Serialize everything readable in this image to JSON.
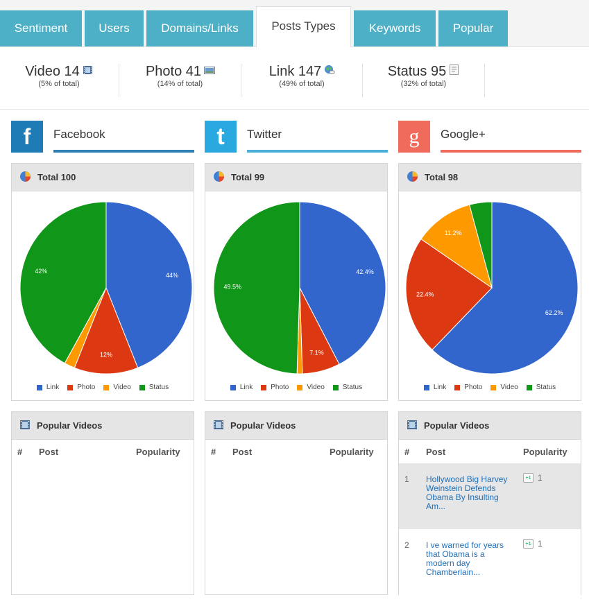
{
  "tabs": [
    {
      "label": "Sentiment",
      "active": false
    },
    {
      "label": "Users",
      "active": false
    },
    {
      "label": "Domains/Links",
      "active": false
    },
    {
      "label": "Posts Types",
      "active": true
    },
    {
      "label": "Keywords",
      "active": false
    },
    {
      "label": "Popular",
      "active": false
    }
  ],
  "summary": [
    {
      "label": "Video 14",
      "sub": "(5% of total)",
      "icon": "film-icon"
    },
    {
      "label": "Photo 41",
      "sub": "(14% of total)",
      "icon": "photo-icon"
    },
    {
      "label": "Link 147",
      "sub": "(49% of total)",
      "icon": "globe-link-icon"
    },
    {
      "label": "Status 95",
      "sub": "(32% of total)",
      "icon": "note-icon"
    }
  ],
  "colors": {
    "link": "#3366cc",
    "photo": "#dc3912",
    "video": "#ff9900",
    "status": "#109618",
    "tab_bg": "#4eb0c7",
    "facebook": "#1f7bb5",
    "twitter": "#2aa9e0",
    "googleplus": "#f06b5b"
  },
  "legend": [
    "Link",
    "Photo",
    "Video",
    "Status"
  ],
  "networks": [
    {
      "name": "Facebook",
      "logo_letter": "f",
      "color": "#1f7bb5",
      "bar_color": "#2c80b4",
      "total_label": "Total 100",
      "chart_data": {
        "type": "pie",
        "categories": [
          "Link",
          "Photo",
          "Video",
          "Status"
        ],
        "values": [
          44,
          12,
          2,
          42
        ],
        "labels": [
          "44%",
          "12%",
          "",
          "42%"
        ]
      },
      "videos_title": "Popular Videos",
      "columns": [
        "#",
        "Post",
        "Popularity"
      ],
      "videos": []
    },
    {
      "name": "Twitter",
      "logo_letter": "t",
      "color": "#2aa9e0",
      "bar_color": "#4aaed8",
      "total_label": "Total 99",
      "chart_data": {
        "type": "pie",
        "categories": [
          "Link",
          "Photo",
          "Video",
          "Status"
        ],
        "values": [
          42.4,
          7.1,
          1.0,
          49.5
        ],
        "labels": [
          "42.4%",
          "7.1%",
          "",
          "49.5%"
        ]
      },
      "videos_title": "Popular Videos",
      "columns": [
        "#",
        "Post",
        "Popularity"
      ],
      "videos": []
    },
    {
      "name": "Google+",
      "logo_letter": "g",
      "color": "#f06b5b",
      "bar_color": "#f06b5b",
      "total_label": "Total 98",
      "chart_data": {
        "type": "pie",
        "categories": [
          "Link",
          "Photo",
          "Video",
          "Status"
        ],
        "values": [
          62.2,
          22.4,
          11.2,
          4.2
        ],
        "labels": [
          "62.2%",
          "22.4%",
          "11.2%",
          ""
        ]
      },
      "videos_title": "Popular Videos",
      "columns": [
        "#",
        "Post",
        "Popularity"
      ],
      "videos": [
        {
          "num": "1",
          "post": "Hollywood Big Harvey Weinstein Defends Obama By Insulting Am...",
          "popularity": "1",
          "badge": "+1"
        },
        {
          "num": "2",
          "post": "I ve warned for years that Obama is a modern day Chamberlain...",
          "popularity": "1",
          "badge": "+1"
        }
      ]
    }
  ]
}
